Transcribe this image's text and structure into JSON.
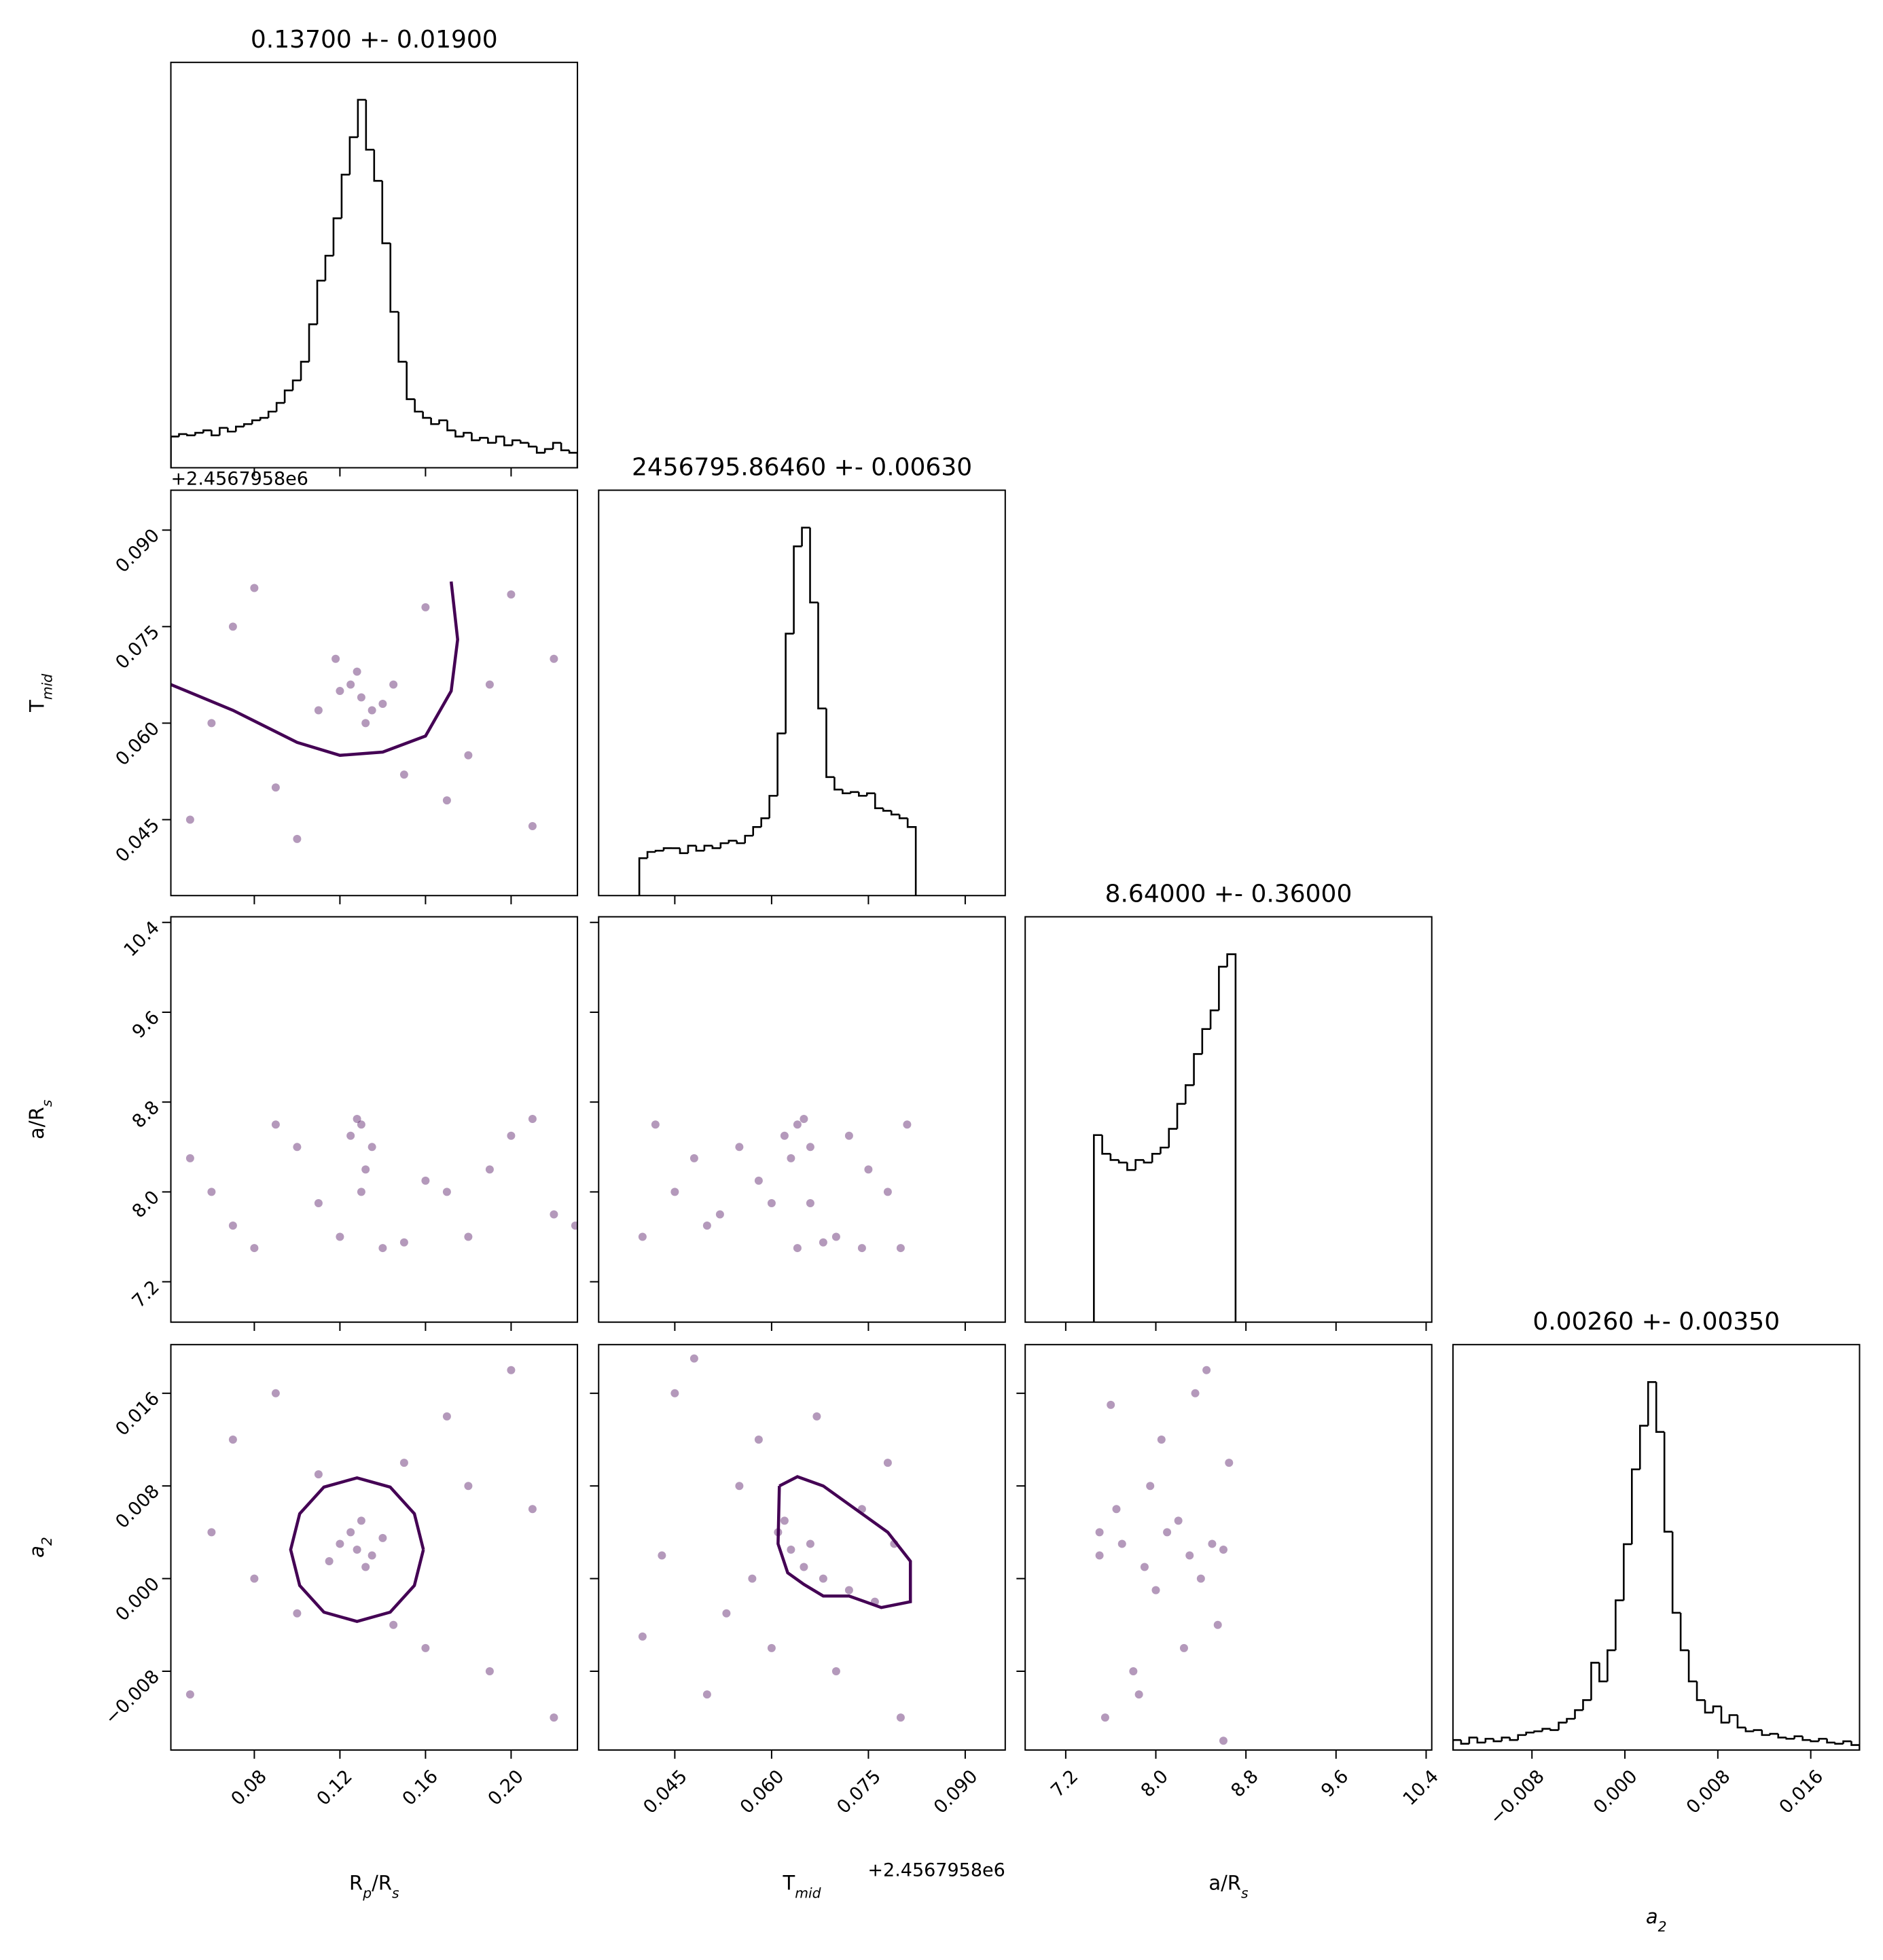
{
  "chart_data": {
    "type": "corner",
    "line_color": "#000000",
    "point_color": "#440154",
    "contour_color": "#440154",
    "variables": [
      {
        "label_parts": [
          "R",
          "p",
          "/R",
          "s"
        ],
        "lim": [
          0.041,
          0.231
        ],
        "ticks": [
          0.08,
          0.12,
          0.16,
          {
            "value": 0.2,
            "label": "0.20"
          }
        ]
      },
      {
        "label_parts": [
          "T",
          "mid"
        ],
        "offset": "+2.4567958e6",
        "lim": [
          0.0332,
          0.0962
        ],
        "ticks": [
          0.045,
          {
            "value": 0.06,
            "label": "0.060"
          },
          0.075,
          {
            "value": 0.09,
            "label": "0.090"
          }
        ]
      },
      {
        "label_parts": [
          "a/R",
          "s"
        ],
        "lim": [
          6.84,
          10.45
        ],
        "ticks": [
          7.2,
          {
            "value": 8,
            "label": "8.0"
          },
          8.8,
          9.6,
          10.4
        ]
      },
      {
        "label_parts": [
          "a",
          "2"
        ],
        "lim": [
          -0.0148,
          0.0202
        ],
        "ticks": [
          {
            "value": -0.008,
            "label": "−0.008"
          },
          {
            "value": 0,
            "label": "0.000"
          },
          0.008,
          0.016
        ]
      }
    ],
    "histograms": [
      {
        "title": "0.13700 +- 0.01900",
        "ylim": [
          0,
          325
        ],
        "bins": [
          0.041,
          0.0448,
          0.0486,
          0.0524,
          0.0562,
          0.06,
          0.0638,
          0.0676,
          0.0714,
          0.0752,
          0.079,
          0.0828,
          0.0866,
          0.0904,
          0.0942,
          0.098,
          0.1018,
          0.1056,
          0.1094,
          0.1132,
          0.117,
          0.1208,
          0.1246,
          0.1284,
          0.1322,
          0.136,
          0.1398,
          0.1436,
          0.1474,
          0.1512,
          0.155,
          0.1588,
          0.1626,
          0.1664,
          0.1702,
          0.174,
          0.1778,
          0.1816,
          0.1854,
          0.1892,
          0.193,
          0.1968,
          0.2006,
          0.2044,
          0.2082,
          0.212,
          0.2158,
          0.2196,
          0.2234,
          0.2272,
          0.231
        ],
        "counts": [
          25,
          27,
          26,
          28,
          30,
          26,
          32,
          29,
          33,
          35,
          38,
          40,
          45,
          52,
          62,
          70,
          85,
          115,
          150,
          170,
          200,
          235,
          265,
          295,
          255,
          230,
          180,
          125,
          85,
          55,
          45,
          40,
          35,
          38,
          30,
          25,
          28,
          22,
          24,
          20,
          25,
          18,
          22,
          20,
          17,
          12,
          15,
          20,
          14,
          12
        ]
      },
      {
        "title": "2456795.86460 +- 0.00630",
        "ylim": [
          0,
          325
        ],
        "bins": [
          0.0395,
          0.04076,
          0.04202,
          0.04328,
          0.04454,
          0.0458,
          0.04706,
          0.04832,
          0.04958,
          0.05084,
          0.0521,
          0.05336,
          0.05462,
          0.05588,
          0.05714,
          0.0584,
          0.05966,
          0.06092,
          0.06218,
          0.06344,
          0.0647,
          0.06596,
          0.06722,
          0.06848,
          0.06974,
          0.071,
          0.07226,
          0.07352,
          0.07478,
          0.07604,
          0.0773,
          0.07856,
          0.07982,
          0.08108,
          0.08234
        ],
        "counts": [
          30,
          35,
          36,
          38,
          38,
          34,
          40,
          36,
          40,
          38,
          42,
          44,
          42,
          48,
          55,
          62,
          80,
          130,
          210,
          280,
          295,
          235,
          150,
          95,
          85,
          82,
          83,
          80,
          82,
          70,
          68,
          65,
          62,
          55
        ]
      },
      {
        "title": "8.64000 +- 0.36000",
        "ylim": [
          0,
          325
        ],
        "bins": [
          7.45,
          7.524,
          7.598,
          7.672,
          7.746,
          7.82,
          7.894,
          7.968,
          8.042,
          8.116,
          8.19,
          8.264,
          8.338,
          8.412,
          8.486,
          8.56,
          8.634,
          8.708
        ],
        "counts": [
          150,
          135,
          130,
          128,
          122,
          130,
          128,
          135,
          140,
          155,
          175,
          190,
          215,
          235,
          250,
          285,
          295
        ]
      },
      {
        "title": "0.00260 +- 0.00350",
        "ylim": [
          0,
          325
        ],
        "bins": [
          -0.0148,
          -0.0141,
          -0.0134,
          -0.0127,
          -0.012,
          -0.0113,
          -0.0106,
          -0.0099,
          -0.0092,
          -0.0085,
          -0.0078,
          -0.0071,
          -0.0064,
          -0.0057,
          -0.005,
          -0.0043,
          -0.0036,
          -0.0029,
          -0.0022,
          -0.0015,
          -0.0008,
          -0.0001,
          0.0006,
          0.0013,
          0.002,
          0.0027,
          0.0034,
          0.0041,
          0.0048,
          0.0055,
          0.0062,
          0.0069,
          0.0076,
          0.0083,
          0.009,
          0.0097,
          0.0104,
          0.0111,
          0.0118,
          0.0125,
          0.0132,
          0.0139,
          0.0146,
          0.0153,
          0.016,
          0.0167,
          0.0174,
          0.0181,
          0.0188,
          0.0195,
          0.0202
        ],
        "counts": [
          8,
          5,
          10,
          6,
          9,
          7,
          10,
          8,
          12,
          14,
          15,
          17,
          16,
          22,
          25,
          32,
          40,
          70,
          55,
          80,
          120,
          165,
          225,
          260,
          295,
          255,
          175,
          110,
          80,
          55,
          40,
          30,
          35,
          22,
          28,
          18,
          15,
          16,
          12,
          13,
          10,
          9,
          11,
          8,
          7,
          9,
          6,
          5,
          7,
          4
        ]
      }
    ],
    "scatter": [
      {
        "x": [
          0.13,
          0.125,
          0.135,
          0.12,
          0.14,
          0.128,
          0.132,
          0.118,
          0.145,
          0.11,
          0.05,
          0.07,
          0.09,
          0.16,
          0.18,
          0.2,
          0.22,
          0.06,
          0.1,
          0.17,
          0.21,
          0.08,
          0.15,
          0.19
        ],
        "y": [
          0.064,
          0.066,
          0.062,
          0.065,
          0.063,
          0.068,
          0.06,
          0.07,
          0.066,
          0.062,
          0.045,
          0.075,
          0.05,
          0.078,
          0.055,
          0.08,
          0.07,
          0.06,
          0.042,
          0.048,
          0.044,
          0.081,
          0.052,
          0.066
        ],
        "contour": {
          "x": [
            0.041,
            0.07,
            0.1,
            0.12,
            0.14,
            0.16,
            0.172,
            0.175,
            0.172
          ],
          "y": [
            0.066,
            0.062,
            0.057,
            0.055,
            0.0555,
            0.058,
            0.065,
            0.073,
            0.082
          ]
        }
      },
      {
        "x": [
          0.13,
          0.125,
          0.135,
          0.128,
          0.132,
          0.12,
          0.14,
          0.13,
          0.05,
          0.07,
          0.09,
          0.11,
          0.16,
          0.18,
          0.2,
          0.22,
          0.06,
          0.1,
          0.15,
          0.19,
          0.21,
          0.08,
          0.17,
          0.23
        ],
        "y": [
          8.6,
          8.5,
          8.4,
          8.65,
          8.2,
          7.6,
          7.5,
          8.0,
          8.3,
          7.7,
          8.6,
          7.9,
          8.1,
          7.6,
          8.5,
          7.8,
          8.0,
          8.4,
          7.55,
          8.2,
          8.65,
          7.5,
          8.0,
          7.7
        ]
      },
      {
        "x": [
          0.064,
          0.062,
          0.066,
          0.065,
          0.063,
          0.064,
          0.045,
          0.05,
          0.055,
          0.07,
          0.075,
          0.08,
          0.042,
          0.06,
          0.072,
          0.078,
          0.048,
          0.068,
          0.058,
          0.052,
          0.081,
          0.04,
          0.074,
          0.066
        ],
        "y": [
          8.6,
          8.5,
          8.4,
          8.65,
          8.3,
          7.5,
          8.0,
          7.7,
          8.4,
          7.6,
          8.2,
          7.5,
          8.6,
          7.9,
          8.5,
          8.0,
          8.3,
          7.55,
          8.1,
          7.8,
          8.6,
          7.6,
          7.5,
          7.9
        ]
      },
      {
        "x": [
          0.128,
          0.12,
          0.135,
          0.125,
          0.132,
          0.14,
          0.115,
          0.13,
          0.05,
          0.07,
          0.09,
          0.16,
          0.18,
          0.2,
          0.22,
          0.06,
          0.1,
          0.15,
          0.19,
          0.08,
          0.17,
          0.21,
          0.11,
          0.145
        ],
        "y": [
          0.0025,
          0.003,
          0.002,
          0.004,
          0.001,
          0.0035,
          0.0015,
          0.005,
          -0.01,
          0.012,
          0.016,
          -0.006,
          0.008,
          0.018,
          -0.012,
          0.004,
          -0.003,
          0.01,
          -0.008,
          0.0,
          0.014,
          0.006,
          0.009,
          -0.004
        ],
        "contour": {
          "x": [
            0.159,
            0.1548,
            0.1435,
            0.128,
            0.1125,
            0.1012,
            0.097,
            0.1012,
            0.1125,
            0.128,
            0.1435,
            0.1548,
            0.159
          ],
          "y": [
            0.0025,
            0.0056,
            0.0079,
            0.0087,
            0.0079,
            0.0056,
            0.0025,
            -0.0006,
            -0.0029,
            -0.0037,
            -0.0029,
            -0.0006,
            0.0025
          ]
        }
      },
      {
        "x": [
          0.063,
          0.061,
          0.065,
          0.062,
          0.068,
          0.072,
          0.066,
          0.076,
          0.045,
          0.05,
          0.055,
          0.04,
          0.058,
          0.07,
          0.078,
          0.08,
          0.043,
          0.048,
          0.053,
          0.074,
          0.06,
          0.067,
          0.057,
          0.079
        ],
        "y": [
          0.0025,
          0.004,
          0.001,
          0.005,
          0.0,
          -0.001,
          0.003,
          -0.002,
          0.016,
          -0.01,
          0.008,
          -0.005,
          0.012,
          -0.008,
          0.01,
          -0.012,
          0.002,
          0.019,
          -0.003,
          0.006,
          -0.006,
          0.014,
          0.0,
          0.003
        ],
        "contour": {
          "x": [
            0.0612,
            0.064,
            0.068,
            0.073,
            0.078,
            0.0815,
            0.0815,
            0.077,
            0.072,
            0.068,
            0.065,
            0.0625,
            0.061,
            0.0612
          ],
          "y": [
            0.008,
            0.0088,
            0.008,
            0.006,
            0.004,
            0.0015,
            -0.002,
            -0.0025,
            -0.0015,
            -0.0015,
            -0.0005,
            0.0005,
            0.003,
            0.008
          ]
        }
      },
      {
        "x": [
          7.5,
          7.7,
          7.9,
          8.1,
          8.3,
          8.5,
          8.6,
          8.4,
          8.2,
          8.0,
          7.6,
          7.8,
          8.65,
          7.55,
          8.45,
          8.25,
          7.95,
          7.65,
          8.55,
          8.05,
          7.85,
          8.35,
          7.5,
          8.6
        ],
        "y": [
          0.002,
          0.003,
          0.001,
          0.004,
          0.002,
          0.003,
          0.0025,
          0.0,
          0.005,
          -0.001,
          0.015,
          -0.008,
          0.01,
          -0.012,
          0.018,
          -0.006,
          0.008,
          0.006,
          -0.004,
          0.012,
          -0.01,
          0.016,
          0.004,
          -0.014
        ]
      }
    ]
  }
}
